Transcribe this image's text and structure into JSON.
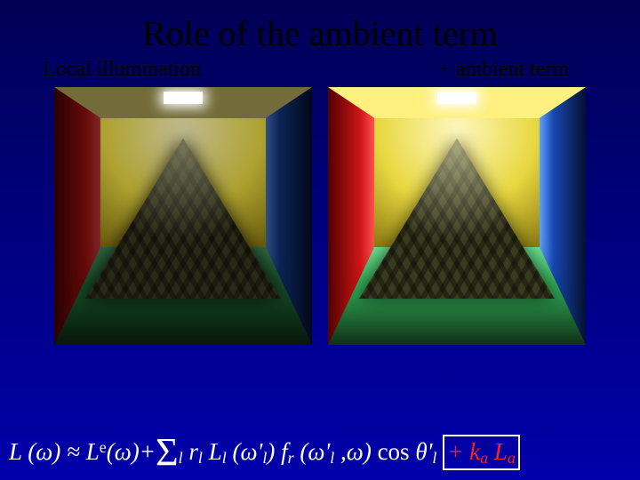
{
  "title": "Role of the ambient term",
  "labels": {
    "left": "Local illumination",
    "right": "+ ambient term"
  },
  "formula": {
    "L": "L",
    "omega": "ω",
    "approx": "≈",
    "Le_sup": "e",
    "plus": "+",
    "sigma": "Σ",
    "sub_l": "l",
    "r": "r",
    "Ll": "L",
    "omega_prime_l": "ω'",
    "fr": "f",
    "fr_sub": "r",
    "comma": ",",
    "cos": "cos",
    "theta_prime_l": "θ'",
    "ambient_plus": "+",
    "k": "k",
    "k_sub": "a",
    "La": "L",
    "La_sub": "a"
  },
  "scene": {
    "colors": {
      "wall_left": "#d01515",
      "wall_right": "#1848b0",
      "floor": "#2faa55",
      "back": "#e8d840",
      "ceiling": "#fff080",
      "pyramid": "#3a3a20",
      "light": "#ffffff"
    }
  }
}
